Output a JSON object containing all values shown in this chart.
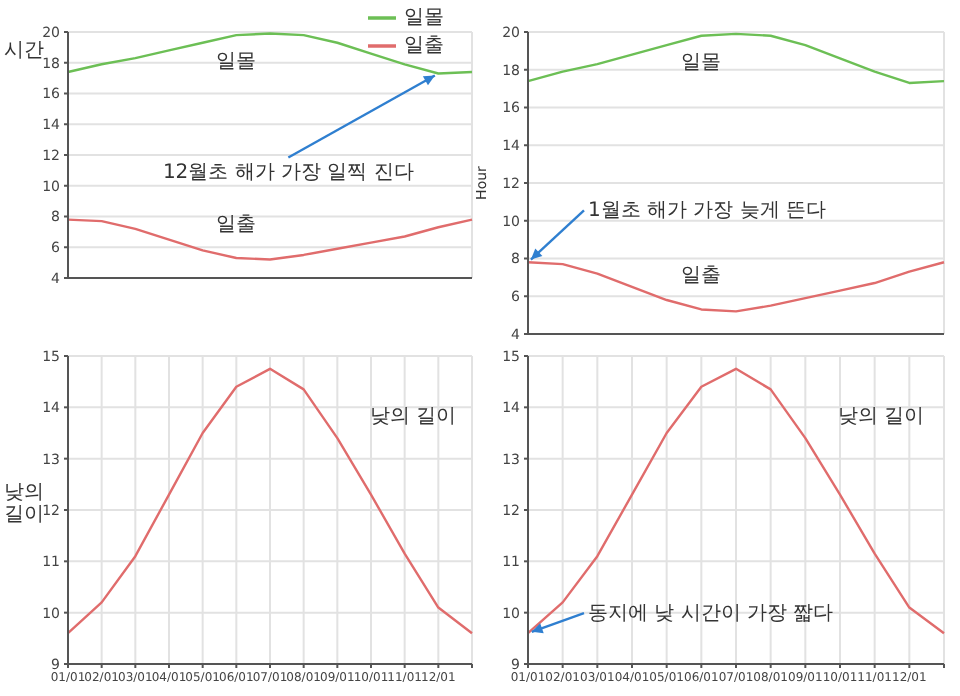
{
  "chart_data": [
    {
      "type": "line",
      "categories": [
        "01/01",
        "02/01",
        "03/01",
        "04/01",
        "05/01",
        "06/01",
        "07/01",
        "08/01",
        "09/01",
        "10/01",
        "11/01",
        "12/01",
        null
      ],
      "ylabel": "시간",
      "ylim": [
        4,
        20
      ],
      "yticks": [
        4,
        6,
        8,
        10,
        12,
        14,
        16,
        18,
        20
      ],
      "grid": true,
      "tick_labels": "y",
      "legend": "top right",
      "series": [
        {
          "name": "일출",
          "color": "#e06c6c",
          "values": [
            7.8,
            7.7,
            7.2,
            6.5,
            5.8,
            5.3,
            5.2,
            5.5,
            5.9,
            6.3,
            6.7,
            7.3,
            7.8
          ]
        },
        {
          "name": "일몰",
          "color": "#6cbf55",
          "values": [
            17.4,
            17.9,
            18.3,
            18.8,
            19.3,
            19.8,
            19.9,
            19.8,
            19.3,
            18.6,
            17.9,
            17.3,
            17.4
          ]
        }
      ],
      "annotations": [
        {
          "text": "12월초 해가 가장 일찍 진다",
          "x": "12/01",
          "y": 17.3
        }
      ]
    },
    {
      "type": "line",
      "categories": [
        "01/01",
        "02/01",
        "03/01",
        "04/01",
        "05/01",
        "06/01",
        "07/01",
        "08/01",
        "09/01",
        "10/01",
        "11/01",
        "12/01",
        null
      ],
      "ylabel": "Hour",
      "ylim": [
        4,
        20
      ],
      "yticks": [
        4,
        6,
        8,
        10,
        12,
        14,
        16,
        18,
        20
      ],
      "grid": true,
      "tick_labels": "y",
      "series": [
        {
          "name": "일출",
          "color": "#e06c6c",
          "values": [
            7.8,
            7.7,
            7.2,
            6.5,
            5.8,
            5.3,
            5.2,
            5.5,
            5.9,
            6.3,
            6.7,
            7.3,
            7.8
          ]
        },
        {
          "name": "일몰",
          "color": "#6cbf55",
          "values": [
            17.4,
            17.9,
            18.3,
            18.8,
            19.3,
            19.8,
            19.9,
            19.8,
            19.3,
            18.6,
            17.9,
            17.3,
            17.4
          ]
        }
      ],
      "annotations": [
        {
          "text": "1월초 해가 가장 늦게 뜬다",
          "x": "01/01",
          "y": 7.8
        }
      ]
    },
    {
      "type": "line",
      "categories": [
        "01/01",
        "02/01",
        "03/01",
        "04/01",
        "05/01",
        "06/01",
        "07/01",
        "08/01",
        "09/01",
        "10/01",
        "11/01",
        "12/01",
        null
      ],
      "ylabel": "낮의 길이",
      "ylim": [
        9,
        15
      ],
      "yticks": [
        9,
        10,
        11,
        12,
        13,
        14,
        15
      ],
      "grid": true,
      "series": [
        {
          "name": "낮의 길이",
          "color": "#e06c6c",
          "values": [
            9.6,
            10.2,
            11.1,
            12.3,
            13.5,
            14.4,
            14.75,
            14.35,
            13.4,
            12.3,
            11.15,
            10.1,
            9.6
          ]
        }
      ]
    },
    {
      "type": "line",
      "categories": [
        "01/01",
        "02/01",
        "03/01",
        "04/01",
        "05/01",
        "06/01",
        "07/01",
        "08/01",
        "09/01",
        "10/01",
        "11/01",
        "12/01",
        null
      ],
      "ylim": [
        9,
        15
      ],
      "yticks": [
        9,
        10,
        11,
        12,
        13,
        14,
        15
      ],
      "grid": true,
      "series": [
        {
          "name": "낮의 길이",
          "color": "#e06c6c",
          "values": [
            9.6,
            10.2,
            11.1,
            12.3,
            13.5,
            14.4,
            14.75,
            14.35,
            13.4,
            12.3,
            11.15,
            10.1,
            9.6
          ]
        }
      ],
      "annotations": [
        {
          "text": "동지에 낮 시간이 가장 짧다",
          "x": "01/01",
          "y": 9.6
        }
      ]
    }
  ]
}
